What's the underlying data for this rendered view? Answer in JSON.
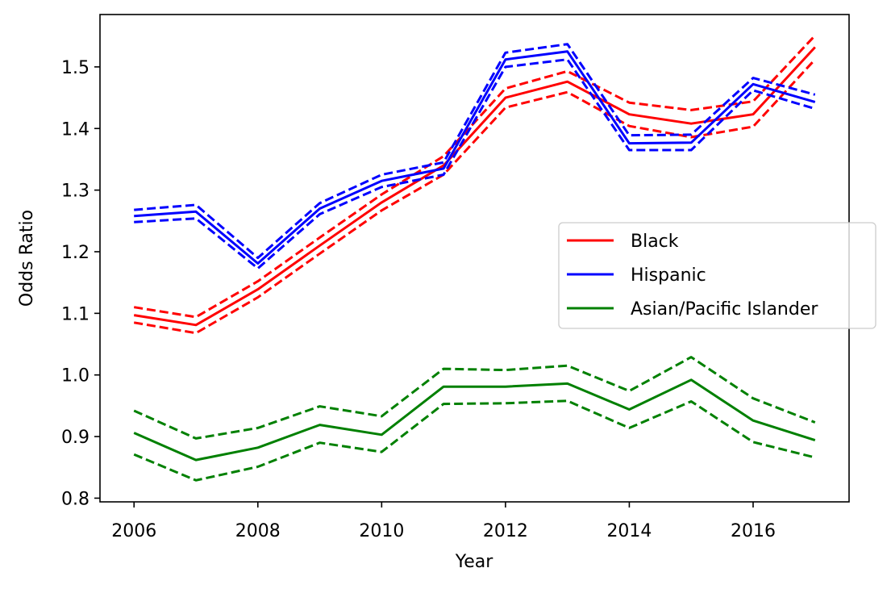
{
  "chart_data": {
    "type": "line",
    "title": "",
    "xlabel": "Year",
    "ylabel": "Odds Ratio",
    "xlim": [
      2005.45,
      2017.55
    ],
    "ylim": [
      0.794,
      1.585
    ],
    "xticks": [
      2006,
      2008,
      2010,
      2012,
      2014,
      2016
    ],
    "yticks": [
      0.8,
      0.9,
      1.0,
      1.1,
      1.2,
      1.3,
      1.4,
      1.5
    ],
    "ytick_labels": [
      "0.8",
      "0.9",
      "1.0",
      "1.1",
      "1.2",
      "1.3",
      "1.4",
      "1.5"
    ],
    "grid": false,
    "legend_position": "center-right",
    "x": [
      2006,
      2007,
      2008,
      2009,
      2010,
      2011,
      2012,
      2013,
      2014,
      2015,
      2016,
      2017
    ],
    "series": [
      {
        "name": "Black",
        "color": "#ff0000",
        "values": [
          1.097,
          1.081,
          1.139,
          1.21,
          1.28,
          1.34,
          1.45,
          1.476,
          1.423,
          1.408,
          1.423,
          1.532
        ],
        "lower": [
          1.085,
          1.068,
          1.126,
          1.197,
          1.267,
          1.325,
          1.434,
          1.459,
          1.404,
          1.386,
          1.403,
          1.512
        ],
        "upper": [
          1.11,
          1.094,
          1.152,
          1.223,
          1.293,
          1.355,
          1.465,
          1.493,
          1.442,
          1.43,
          1.444,
          1.551
        ]
      },
      {
        "name": "Hispanic",
        "color": "#0000ff",
        "values": [
          1.258,
          1.265,
          1.181,
          1.27,
          1.315,
          1.335,
          1.512,
          1.525,
          1.376,
          1.377,
          1.472,
          1.443
        ],
        "lower": [
          1.248,
          1.254,
          1.173,
          1.261,
          1.305,
          1.325,
          1.5,
          1.512,
          1.365,
          1.365,
          1.462,
          1.432
        ],
        "upper": [
          1.268,
          1.276,
          1.19,
          1.279,
          1.325,
          1.345,
          1.523,
          1.537,
          1.389,
          1.39,
          1.482,
          1.455
        ]
      },
      {
        "name": "Asian/Pacific Islander",
        "color": "#008000",
        "values": [
          0.906,
          0.862,
          0.882,
          0.919,
          0.903,
          0.981,
          0.981,
          0.986,
          0.944,
          0.992,
          0.926,
          0.894
        ],
        "lower": [
          0.871,
          0.829,
          0.851,
          0.89,
          0.875,
          0.953,
          0.954,
          0.958,
          0.914,
          0.957,
          0.891,
          0.866
        ],
        "upper": [
          0.942,
          0.897,
          0.914,
          0.949,
          0.933,
          1.01,
          1.008,
          1.015,
          0.974,
          1.029,
          0.962,
          0.923
        ]
      }
    ]
  }
}
